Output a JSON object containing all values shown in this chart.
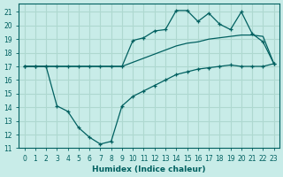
{
  "xlabel": "Humidex (Indice chaleur)",
  "background_color": "#c8ece8",
  "grid_color": "#aed8d0",
  "line_color": "#006060",
  "xlim": [
    -0.5,
    23.5
  ],
  "ylim": [
    11,
    21.6
  ],
  "yticks": [
    11,
    12,
    13,
    14,
    15,
    16,
    17,
    18,
    19,
    20,
    21
  ],
  "xticks": [
    0,
    1,
    2,
    3,
    4,
    5,
    6,
    7,
    8,
    9,
    10,
    11,
    12,
    13,
    14,
    15,
    16,
    17,
    18,
    19,
    20,
    21,
    22,
    23
  ],
  "series": [
    {
      "x": [
        0,
        1,
        2,
        3,
        4,
        5,
        6,
        7,
        8,
        9,
        10,
        11,
        12,
        13,
        14,
        15,
        16,
        17,
        18,
        19,
        20,
        21,
        22,
        23
      ],
      "y": [
        17.0,
        17.0,
        17.0,
        17.0,
        17.0,
        17.0,
        17.0,
        17.0,
        17.0,
        17.0,
        17.3,
        17.6,
        17.9,
        18.2,
        18.5,
        18.7,
        18.8,
        19.0,
        19.1,
        19.2,
        19.3,
        19.3,
        19.2,
        17.2
      ],
      "marker": null
    },
    {
      "x": [
        0,
        1,
        2,
        3,
        4,
        5,
        6,
        7,
        8,
        9,
        10,
        11,
        12,
        13,
        14,
        15,
        16,
        17,
        18,
        19,
        20,
        21,
        22,
        23
      ],
      "y": [
        17.0,
        17.0,
        17.0,
        17.0,
        17.0,
        17.0,
        17.0,
        17.0,
        17.0,
        17.0,
        18.9,
        19.1,
        19.6,
        19.7,
        21.1,
        21.1,
        20.3,
        20.9,
        20.1,
        19.7,
        21.0,
        19.4,
        18.8,
        17.2
      ],
      "marker": "+"
    },
    {
      "x": [
        0,
        1,
        2,
        3,
        4,
        5,
        6,
        7,
        8,
        9,
        10,
        11,
        12,
        13,
        14,
        15,
        16,
        17,
        18,
        19,
        20,
        21,
        22,
        23
      ],
      "y": [
        17.0,
        17.0,
        17.0,
        14.1,
        13.7,
        12.5,
        11.8,
        11.3,
        11.5,
        14.1,
        14.8,
        15.2,
        15.6,
        16.0,
        16.4,
        16.6,
        16.8,
        16.9,
        17.0,
        17.1,
        17.0,
        17.0,
        17.0,
        17.2
      ],
      "marker": "+"
    }
  ]
}
